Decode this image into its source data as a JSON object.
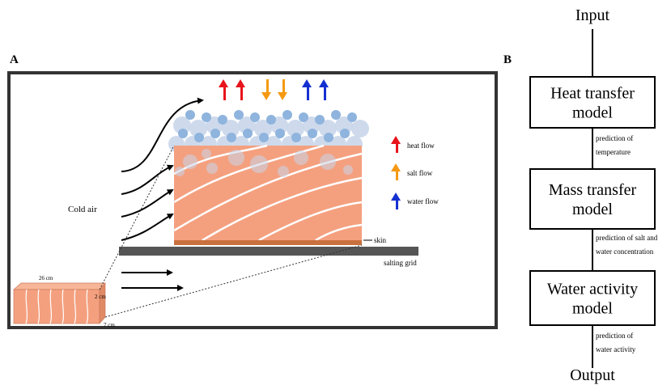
{
  "panel_a": {
    "label": "A",
    "cold_air": "Cold air",
    "legend": [
      {
        "label": "heat flow"
      },
      {
        "label": "salt flow"
      },
      {
        "label": "water flow"
      }
    ],
    "skin": "skin",
    "salting_grid": "salting grid",
    "dimensions": {
      "length": "26 cm",
      "height": "2 cm",
      "width": "7 cm"
    }
  },
  "panel_b": {
    "label": "B",
    "input": "Input",
    "output": "Output",
    "models": [
      {
        "lines": [
          "Heat transfer",
          "model"
        ]
      },
      {
        "lines": [
          "Mass transfer",
          "model"
        ]
      },
      {
        "lines": [
          "Water activity",
          "model"
        ]
      }
    ],
    "predictions": [
      {
        "lines": [
          "prediction of",
          "temperature"
        ]
      },
      {
        "lines": [
          "prediction of salt and",
          "water concentration"
        ]
      },
      {
        "lines": [
          "prediction of",
          "water activity"
        ]
      }
    ]
  }
}
